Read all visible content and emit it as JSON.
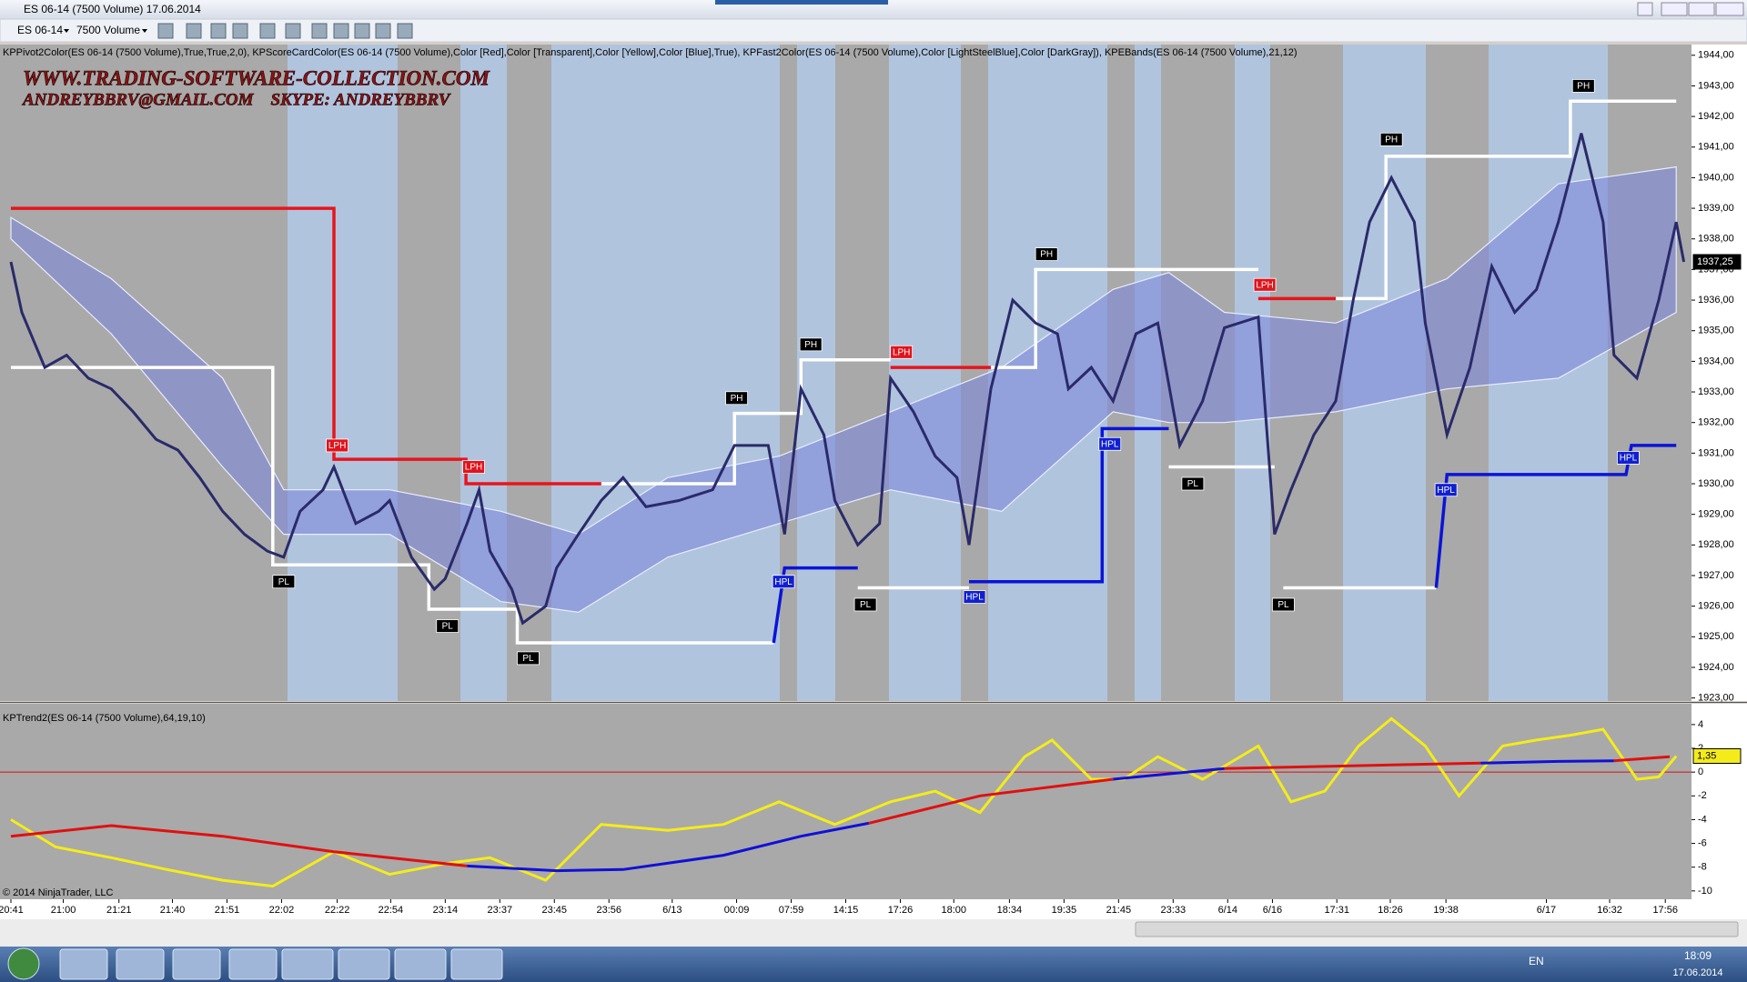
{
  "window": {
    "title": "ES 06-14 (7500 Volume)  17.06.2014"
  },
  "toolbar": {
    "instrument": "ES 06-14",
    "interval": "7500 Volume"
  },
  "watermark": [
    "WWW.TRADING-SOFTWARE-COLLECTION.COM",
    "ANDREYBBRV@GMAIL.COM    SKYPE: ANDREYBBRV"
  ],
  "chart_data": [
    {
      "type": "line",
      "subtitle": "KPPivot2Color(ES 06-14 (7500 Volume),True,True,2,0), KPScoreCardColor(ES 06-14 (7500 Volume),Color [Red],Color [Transparent],Color [Yellow],Color [Blue],True), KPFast2Color(ES 06-14 (7500 Volume),Color [LightSteelBlue],Color [DarkGray]), KPEBands(ES 06-14 (7500 Volume),21,12)",
      "xlim": [
        -1,
        154
      ],
      "ylim": [
        1922.9,
        1944.35
      ],
      "xticks": [
        {
          "value": 0,
          "label": "20:41"
        },
        {
          "value": 4.8,
          "label": "21:00"
        },
        {
          "value": 9.9,
          "label": "21:21"
        },
        {
          "value": 14.8,
          "label": "21:40"
        },
        {
          "value": 19.8,
          "label": "21:51"
        },
        {
          "value": 24.8,
          "label": "22:02"
        },
        {
          "value": 29.9,
          "label": "22:22"
        },
        {
          "value": 34.8,
          "label": "22:54"
        },
        {
          "value": 39.8,
          "label": "23:14"
        },
        {
          "value": 44.8,
          "label": "23:37"
        },
        {
          "value": 49.8,
          "label": "23:45"
        },
        {
          "value": 54.8,
          "label": "23:56"
        },
        {
          "value": 60.6,
          "label": "6/13"
        },
        {
          "value": 66.5,
          "label": "00:09"
        },
        {
          "value": 71.5,
          "label": "07:59"
        },
        {
          "value": 76.5,
          "label": "14:15"
        },
        {
          "value": 81.5,
          "label": "17:26"
        },
        {
          "value": 86.4,
          "label": "18:00"
        },
        {
          "value": 91.5,
          "label": "18:34"
        },
        {
          "value": 96.5,
          "label": "19:35"
        },
        {
          "value": 101.5,
          "label": "21:45"
        },
        {
          "value": 106.5,
          "label": "23:33"
        },
        {
          "value": 111.5,
          "label": "6/14"
        },
        {
          "value": 115.6,
          "label": "6/16"
        },
        {
          "value": 121.5,
          "label": "17:31"
        },
        {
          "value": 126.4,
          "label": "18:26"
        },
        {
          "value": 131.5,
          "label": "19:38"
        },
        {
          "value": 140.7,
          "label": "6/17"
        },
        {
          "value": 146.5,
          "label": "16:32"
        },
        {
          "value": 151.6,
          "label": "17:56"
        }
      ],
      "yticks": [
        {
          "value": 1944,
          "label": "1944,00"
        },
        {
          "value": 1943,
          "label": "1943,00"
        },
        {
          "value": 1942,
          "label": "1942,00"
        },
        {
          "value": 1941,
          "label": "1941,00"
        },
        {
          "value": 1940,
          "label": "1940,00"
        },
        {
          "value": 1939,
          "label": "1939,00"
        },
        {
          "value": 1938,
          "label": "1938,00"
        },
        {
          "value": 1937,
          "label": "1937,00"
        },
        {
          "value": 1936,
          "label": "1936,00"
        },
        {
          "value": 1935,
          "label": "1935,00"
        },
        {
          "value": 1934,
          "label": "1934,00"
        },
        {
          "value": 1933,
          "label": "1933,00"
        },
        {
          "value": 1932,
          "label": "1932,00"
        },
        {
          "value": 1931,
          "label": "1931,00"
        },
        {
          "value": 1930,
          "label": "1930,00"
        },
        {
          "value": 1929,
          "label": "1929,00"
        },
        {
          "value": 1928,
          "label": "1928,00"
        },
        {
          "value": 1927,
          "label": "1927,00"
        },
        {
          "value": 1926,
          "label": "1926,00"
        },
        {
          "value": 1925,
          "label": "1925,00"
        },
        {
          "value": 1924,
          "label": "1924,00"
        },
        {
          "value": 1923,
          "label": "1923,00"
        }
      ],
      "band": {
        "color": "#7f88d8",
        "x": [
          0,
          9.2,
          19.4,
          25,
          34.7,
          44.9,
          52,
          60.2,
          70.4,
          80.6,
          90.8,
          101,
          106.1,
          111.2,
          121.4,
          131.6,
          141.8,
          152.6
        ],
        "upper": [
          1938.7,
          1936.7,
          1933.45,
          1929.8,
          1929.8,
          1929.1,
          1928.35,
          1930.2,
          1930.9,
          1932.35,
          1933.8,
          1936.35,
          1936.9,
          1935.6,
          1935.25,
          1936.7,
          1939.8,
          1940.35
        ],
        "lower": [
          1938,
          1934.9,
          1930.55,
          1928.35,
          1928.35,
          1926.15,
          1925.8,
          1927.6,
          1928.7,
          1929.8,
          1929.1,
          1932.35,
          1932,
          1932,
          1932.35,
          1933.1,
          1933.45,
          1935.6
        ]
      },
      "series": [
        {
          "color": "#ffffff",
          "x": [
            0,
            24,
            24,
            38.3,
            38.3,
            46.4,
            46.4,
            69.9,
            69.9,
            54.1,
            66.3,
            66.3,
            72.4,
            72.4,
            80.6,
            80.6,
            77.6,
            87.8,
            87.8,
            89.8,
            93.9,
            93.9,
            114.3,
            114.3,
            106.1,
            115.8,
            115.8,
            116.6,
            130.6,
            130.6,
            121.4,
            126,
            126,
            142.9,
            142.9,
            152.6
          ],
          "values": [
            1933.8,
            1933.8,
            1927.35,
            1927.35,
            1925.9,
            1925.9,
            1924.8,
            1924.8,
            null,
            1930,
            1930,
            1932.3,
            1932.3,
            1934.05,
            1934.05,
            null,
            1926.6,
            1926.6,
            null,
            1933.8,
            1933.8,
            1937,
            1937,
            null,
            1930.55,
            1930.55,
            null,
            1926.6,
            1926.6,
            null,
            1936.05,
            1936.05,
            1940.7,
            1940.7,
            1942.5,
            1942.5
          ]
        },
        {
          "color": "#e8141c",
          "x": [
            0,
            29.6,
            29.6,
            41.7,
            41.7,
            54.1,
            54.1,
            80.6,
            89.8,
            89.8,
            114.3,
            121.4
          ],
          "values": [
            1939,
            1939,
            1930.8,
            1930.8,
            1930,
            1930,
            null,
            1933.8,
            1933.8,
            null,
            1936.05,
            1936.05
          ]
        },
        {
          "color": "#0a14d8",
          "x": [
            69.9,
            70.9,
            77.6,
            77.6,
            87.8,
            100,
            100,
            106.1,
            106.1,
            130.6,
            131.6,
            148,
            148.5,
            152.6
          ],
          "values": [
            1924.8,
            1927.25,
            1927.25,
            null,
            1926.8,
            1926.8,
            1931.8,
            1931.8,
            null,
            1926.6,
            1930.3,
            1930.3,
            1931.25,
            1931.25
          ]
        },
        {
          "color": "#2a2a6a",
          "x": [
            0,
            1,
            3.1,
            5.1,
            7.1,
            9.2,
            11.2,
            13.3,
            15.3,
            17.3,
            19.4,
            21.4,
            23.5,
            25,
            26.5,
            28.6,
            29.6,
            31.6,
            33.7,
            34.7,
            36.7,
            38.8,
            39.8,
            41.8,
            42.9,
            43.9,
            45.9,
            46.9,
            49,
            50,
            52,
            54.1,
            56.1,
            58.2,
            61.2,
            64.3,
            66.3,
            69.4,
            70.9,
            72.4,
            74.5,
            75.5,
            77.6,
            79.6,
            80.6,
            82.7,
            84.7,
            86.7,
            87.8,
            89.8,
            91.8,
            93.9,
            95.9,
            96.9,
            99,
            101,
            103.1,
            105.1,
            107.1,
            109.2,
            111.2,
            114.3,
            115.8,
            117.3,
            119.4,
            121.4,
            123,
            124.5,
            126.5,
            128.6,
            129.6,
            131.6,
            133.7,
            135.7,
            137.8,
            139.8,
            141.8,
            143.9,
            145.9,
            146.9,
            149,
            151,
            152.6,
            153.3
          ],
          "values": [
            1937.25,
            1935.6,
            1933.8,
            1934.2,
            1933.45,
            1933.1,
            1932.35,
            1931.45,
            1931.1,
            1930.2,
            1929.1,
            1928.35,
            1927.8,
            1927.6,
            1929.1,
            1929.8,
            1930.55,
            1928.7,
            1929.1,
            1929.45,
            1927.6,
            1926.55,
            1926.9,
            1928.7,
            1929.8,
            1927.8,
            1926.55,
            1925.45,
            1926,
            1927.25,
            1928.35,
            1929.45,
            1930.2,
            1929.25,
            1929.45,
            1929.8,
            1931.25,
            1931.25,
            1928.35,
            1933.1,
            1931.6,
            1929.45,
            1928,
            1928.7,
            1933.45,
            1932.35,
            1930.9,
            1930.2,
            1928,
            1933.1,
            1936,
            1935.25,
            1934.9,
            1933.1,
            1933.8,
            1932.7,
            1934.9,
            1935.25,
            1931.25,
            1932.7,
            1935.1,
            1935.45,
            1928.35,
            1929.8,
            1931.6,
            1932.7,
            1936,
            1938.55,
            1940,
            1938.55,
            1935.25,
            1931.6,
            1933.8,
            1937.1,
            1935.6,
            1936.35,
            1938.55,
            1941.45,
            1938.55,
            1934.2,
            1933.45,
            1936,
            1938.55,
            1937.25
          ]
        }
      ],
      "annotations": [
        {
          "text": "PL",
          "x": 25,
          "y": 1926.8,
          "color": "#000000"
        },
        {
          "text": "LPH",
          "x": 29.9,
          "y": 1931.25,
          "color": "#e0141c"
        },
        {
          "text": "PL",
          "x": 40,
          "y": 1925.35,
          "color": "#000000"
        },
        {
          "text": "LPH",
          "x": 42.4,
          "y": 1930.55,
          "color": "#e0141c"
        },
        {
          "text": "PL",
          "x": 47.4,
          "y": 1924.3,
          "color": "#000000"
        },
        {
          "text": "PH",
          "x": 66.5,
          "y": 1932.8,
          "color": "#000000"
        },
        {
          "text": "HPL",
          "x": 70.8,
          "y": 1926.8,
          "color": "#1020d0"
        },
        {
          "text": "PH",
          "x": 73.3,
          "y": 1934.55,
          "color": "#000000"
        },
        {
          "text": "PL",
          "x": 78.3,
          "y": 1926.05,
          "color": "#000000"
        },
        {
          "text": "LPH",
          "x": 81.6,
          "y": 1934.3,
          "color": "#e0141c"
        },
        {
          "text": "HPL",
          "x": 88.3,
          "y": 1926.3,
          "color": "#1020d0"
        },
        {
          "text": "PH",
          "x": 94.9,
          "y": 1937.5,
          "color": "#000000"
        },
        {
          "text": "HPL",
          "x": 100.7,
          "y": 1931.3,
          "color": "#1020d0"
        },
        {
          "text": "PL",
          "x": 108.3,
          "y": 1930,
          "color": "#000000"
        },
        {
          "text": "LPH",
          "x": 114.9,
          "y": 1936.5,
          "color": "#e0141c"
        },
        {
          "text": "PL",
          "x": 116.6,
          "y": 1926.05,
          "color": "#000000"
        },
        {
          "text": "PH",
          "x": 126.5,
          "y": 1941.25,
          "color": "#000000"
        },
        {
          "text": "HPL",
          "x": 131.5,
          "y": 1929.8,
          "color": "#1020d0"
        },
        {
          "text": "PH",
          "x": 144.1,
          "y": 1943,
          "color": "#000000"
        },
        {
          "text": "HPL",
          "x": 148.2,
          "y": 1930.85,
          "color": "#1020d0"
        }
      ],
      "last_value": {
        "value": 1937.25,
        "label": "1937,25"
      }
    },
    {
      "type": "line",
      "title": "KPTrend2(ES 06-14 (7500 Volume),64,19,10)",
      "xlim": [
        -1,
        154
      ],
      "ylim": [
        -10.7,
        5.75
      ],
      "yticks": [
        4,
        2,
        0,
        -2,
        -4,
        -6,
        -8,
        -10
      ],
      "reference_line": {
        "value": 0,
        "color": "#d81010"
      },
      "series": [
        {
          "color": "#f4ec1a",
          "x": [
            0,
            4.1,
            9.2,
            14.3,
            19.4,
            24,
            29.6,
            34.7,
            39.8,
            43.9,
            49,
            54.1,
            60.2,
            65.3,
            70.4,
            75.5,
            80.6,
            84.7,
            88.8,
            92.9,
            95.4,
            99,
            102,
            105.1,
            109.2,
            114.3,
            117.3,
            120.4,
            123.5,
            126.5,
            129.6,
            132.7,
            136.7,
            139.8,
            142.9,
            145.9,
            149,
            151,
            152.6
          ],
          "values": [
            -4,
            -6.3,
            -7.2,
            -8.2,
            -9.1,
            -9.6,
            -6.7,
            -8.6,
            -7.7,
            -7.2,
            -9.1,
            -4.4,
            -4.9,
            -4.4,
            -2.5,
            -4.4,
            -2.5,
            -1.6,
            -3.4,
            1.3,
            2.7,
            -0.6,
            -0.6,
            1.3,
            -0.6,
            2.2,
            -2.5,
            -1.6,
            2.2,
            4.5,
            2.2,
            -2,
            2.2,
            2.7,
            3.1,
            3.6,
            -0.6,
            -0.4,
            1.35
          ]
        },
        {
          "color": "#e01010",
          "x": [
            0,
            9.2,
            19.4,
            29.6,
            41.8,
            41.8,
            78.6,
            88.8,
            101,
            101,
            111.2,
            121.4,
            131.6,
            134.7,
            134.7,
            146.9,
            152
          ],
          "values": [
            -5.4,
            -4.5,
            -5.4,
            -6.7,
            -7.9,
            null,
            -4.3,
            -2,
            -0.6,
            null,
            0.3,
            0.5,
            0.7,
            0.75,
            null,
            0.95,
            1.3
          ]
        },
        {
          "color": "#1010d8",
          "x": [
            41.8,
            50,
            56.1,
            65.3,
            72.4,
            78.6,
            78.6,
            101,
            111.2,
            111.2,
            134.7,
            141.8,
            146.9
          ],
          "values": [
            -7.9,
            -8.3,
            -8.2,
            -7,
            -5.4,
            -4.3,
            null,
            -0.6,
            0.3,
            null,
            0.75,
            0.9,
            0.95
          ]
        }
      ],
      "last_value": {
        "value": 1.35,
        "label": "1,35"
      }
    }
  ],
  "copyright": "© 2014 NinjaTrader, LLC",
  "taskbar": {
    "language": "EN",
    "time": "18:09",
    "date": "17.06.2014"
  }
}
